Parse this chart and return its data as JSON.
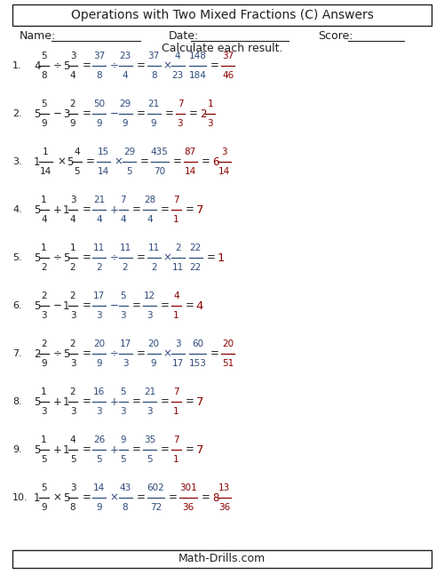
{
  "title": "Operations with Two Mixed Fractions (C) Answers",
  "name_label": "Name:",
  "date_label": "Date:",
  "score_label": "Score:",
  "instruction": "Calculate each result.",
  "footer": "Math-Drills.com",
  "color_black": "#231F20",
  "color_blue": "#2E4A7A",
  "color_red": "#8B0000",
  "problems": [
    {
      "num": "1.",
      "mixed1": {
        "whole": "4",
        "num": "5",
        "den": "8"
      },
      "op1": "÷",
      "mixed2": {
        "whole": "5",
        "num": "3",
        "den": "4"
      },
      "imp1": {
        "num": "37",
        "den": "8"
      },
      "op2": "÷",
      "imp2": {
        "num": "23",
        "den": "4"
      },
      "step": {
        "num": "37",
        "den": "8",
        "op": "×",
        "num2": "4",
        "den2": "23"
      },
      "frac_mid": {
        "num": "148",
        "den": "184"
      },
      "frac_reduced": null,
      "answer_frac": {
        "num": "37",
        "den": "46"
      },
      "answer_mixed": null,
      "answer_whole": null
    },
    {
      "num": "2.",
      "mixed1": {
        "whole": "5",
        "num": "5",
        "den": "9"
      },
      "op1": "−",
      "mixed2": {
        "whole": "3",
        "num": "2",
        "den": "9"
      },
      "imp1": {
        "num": "50",
        "den": "9"
      },
      "op2": "−",
      "imp2": {
        "num": "29",
        "den": "9"
      },
      "step": null,
      "frac_mid": {
        "num": "21",
        "den": "9"
      },
      "frac_reduced": {
        "num": "7",
        "den": "3"
      },
      "answer_frac": null,
      "answer_mixed": {
        "whole": "2",
        "num": "1",
        "den": "3"
      },
      "answer_whole": null
    },
    {
      "num": "3.",
      "mixed1": {
        "whole": "1",
        "num": "1",
        "den": "14"
      },
      "op1": "×",
      "mixed2": {
        "whole": "5",
        "num": "4",
        "den": "5"
      },
      "imp1": {
        "num": "15",
        "den": "14"
      },
      "op2": "×",
      "imp2": {
        "num": "29",
        "den": "5"
      },
      "step": null,
      "frac_mid": {
        "num": "435",
        "den": "70"
      },
      "frac_reduced": {
        "num": "87",
        "den": "14"
      },
      "answer_frac": null,
      "answer_mixed": {
        "whole": "6",
        "num": "3",
        "den": "14"
      },
      "answer_whole": null
    },
    {
      "num": "4.",
      "mixed1": {
        "whole": "5",
        "num": "1",
        "den": "4"
      },
      "op1": "+",
      "mixed2": {
        "whole": "1",
        "num": "3",
        "den": "4"
      },
      "imp1": {
        "num": "21",
        "den": "4"
      },
      "op2": "+",
      "imp2": {
        "num": "7",
        "den": "4"
      },
      "step": null,
      "frac_mid": {
        "num": "28",
        "den": "4"
      },
      "frac_reduced": {
        "num": "7",
        "den": "1"
      },
      "answer_frac": null,
      "answer_mixed": null,
      "answer_whole": "7"
    },
    {
      "num": "5.",
      "mixed1": {
        "whole": "5",
        "num": "1",
        "den": "2"
      },
      "op1": "÷",
      "mixed2": {
        "whole": "5",
        "num": "1",
        "den": "2"
      },
      "imp1": {
        "num": "11",
        "den": "2"
      },
      "op2": "÷",
      "imp2": {
        "num": "11",
        "den": "2"
      },
      "step": {
        "num": "11",
        "den": "2",
        "op": "×",
        "num2": "2",
        "den2": "11"
      },
      "frac_mid": {
        "num": "22",
        "den": "22"
      },
      "frac_reduced": null,
      "answer_frac": null,
      "answer_mixed": null,
      "answer_whole": "1"
    },
    {
      "num": "6.",
      "mixed1": {
        "whole": "5",
        "num": "2",
        "den": "3"
      },
      "op1": "−",
      "mixed2": {
        "whole": "1",
        "num": "2",
        "den": "3"
      },
      "imp1": {
        "num": "17",
        "den": "3"
      },
      "op2": "−",
      "imp2": {
        "num": "5",
        "den": "3"
      },
      "step": null,
      "frac_mid": {
        "num": "12",
        "den": "3"
      },
      "frac_reduced": {
        "num": "4",
        "den": "1"
      },
      "answer_frac": null,
      "answer_mixed": null,
      "answer_whole": "4"
    },
    {
      "num": "7.",
      "mixed1": {
        "whole": "2",
        "num": "2",
        "den": "9"
      },
      "op1": "÷",
      "mixed2": {
        "whole": "5",
        "num": "2",
        "den": "3"
      },
      "imp1": {
        "num": "20",
        "den": "9"
      },
      "op2": "÷",
      "imp2": {
        "num": "17",
        "den": "3"
      },
      "step": {
        "num": "20",
        "den": "9",
        "op": "×",
        "num2": "3",
        "den2": "17"
      },
      "frac_mid": {
        "num": "60",
        "den": "153"
      },
      "frac_reduced": null,
      "answer_frac": {
        "num": "20",
        "den": "51"
      },
      "answer_mixed": null,
      "answer_whole": null
    },
    {
      "num": "8.",
      "mixed1": {
        "whole": "5",
        "num": "1",
        "den": "3"
      },
      "op1": "+",
      "mixed2": {
        "whole": "1",
        "num": "2",
        "den": "3"
      },
      "imp1": {
        "num": "16",
        "den": "3"
      },
      "op2": "+",
      "imp2": {
        "num": "5",
        "den": "3"
      },
      "step": null,
      "frac_mid": {
        "num": "21",
        "den": "3"
      },
      "frac_reduced": {
        "num": "7",
        "den": "1"
      },
      "answer_frac": null,
      "answer_mixed": null,
      "answer_whole": "7"
    },
    {
      "num": "9.",
      "mixed1": {
        "whole": "5",
        "num": "1",
        "den": "5"
      },
      "op1": "+",
      "mixed2": {
        "whole": "1",
        "num": "4",
        "den": "5"
      },
      "imp1": {
        "num": "26",
        "den": "5"
      },
      "op2": "+",
      "imp2": {
        "num": "9",
        "den": "5"
      },
      "step": null,
      "frac_mid": {
        "num": "35",
        "den": "5"
      },
      "frac_reduced": {
        "num": "7",
        "den": "1"
      },
      "answer_frac": null,
      "answer_mixed": null,
      "answer_whole": "7"
    },
    {
      "num": "10.",
      "mixed1": {
        "whole": "1",
        "num": "5",
        "den": "9"
      },
      "op1": "×",
      "mixed2": {
        "whole": "5",
        "num": "3",
        "den": "8"
      },
      "imp1": {
        "num": "14",
        "den": "9"
      },
      "op2": "×",
      "imp2": {
        "num": "43",
        "den": "8"
      },
      "step": null,
      "frac_mid": {
        "num": "602",
        "den": "72"
      },
      "frac_reduced": {
        "num": "301",
        "den": "36"
      },
      "answer_frac": null,
      "answer_mixed": {
        "whole": "8",
        "num": "13",
        "den": "36"
      },
      "answer_whole": null
    }
  ]
}
